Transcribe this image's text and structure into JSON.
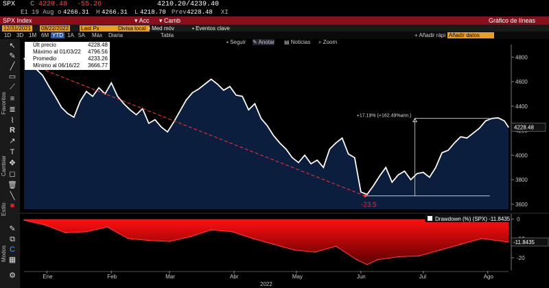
{
  "quote": {
    "ticker": "SPX",
    "code": "C",
    "last": "4228.48",
    "change": "-55.26",
    "range": "4210.20/4239.40",
    "exchange": "E1",
    "date": "19 Aug",
    "open_label": "o",
    "open": "4266.31",
    "high_label": "H",
    "high": "4266.31",
    "low_label": "L",
    "low": "4218.70",
    "prev_label": "Prev",
    "prev": "4228.48",
    "xi": "XI"
  },
  "title_bar": {
    "security": "SPX Index",
    "actions": "Acc",
    "actions2": "Camb",
    "chart_name": "Gráfico de líneas"
  },
  "settings_bar": {
    "start_date": "12/31/2021",
    "end_date": "08/22/2022",
    "price_field": "Last Px",
    "currency": "Divisa local",
    "moving_avg": "Med móv",
    "key_events": "Eventos clave"
  },
  "periods": [
    "1D",
    "3D",
    "1M",
    "6M",
    "YTD",
    "1A",
    "5A",
    "Máx",
    "Diaria"
  ],
  "selected_period": "YTD",
  "table_label": "Tabla",
  "quick_add": "Añadir rápi",
  "quick_add_field": "Añadir datos",
  "chart_toolbar": [
    "Seguir",
    "Anotar",
    "Noticias",
    "Zoom"
  ],
  "left_labels": [
    "Favoritos",
    "Cambiar",
    "Estilo",
    "Modos"
  ],
  "stats": [
    {
      "label": "Últ precio",
      "value": "4228.48"
    },
    {
      "label": "Máximo al 01/03/22",
      "value": "4796.56"
    },
    {
      "label": "Promedio",
      "value": "4233.26"
    },
    {
      "label": "Mínimo al 06/16/22",
      "value": "3666.77"
    }
  ],
  "annotations": {
    "gain": "+17.19% (+162.49%ann.)",
    "drop": "-23.5",
    "last_tag": "4228.48",
    "dd_legend": "Drawdown (%) (SPX) -11.8435",
    "dd_tag": "-11.8435",
    "year": "2022"
  },
  "colors": {
    "accent_red": "#8a0f1c",
    "field_amber": "#e8a020",
    "price_line": "#ffffff",
    "area_fill": "#0b1e3e",
    "drawdown": "#e81818"
  },
  "chart_data": [
    {
      "type": "line",
      "title": "",
      "ylim": [
        3560,
        4880
      ],
      "yticks": [
        3600,
        3800,
        4000,
        4200,
        4400,
        4600,
        4800
      ],
      "x_ticks": [
        "Ene",
        "Feb",
        "Mar",
        "Abr",
        "May",
        "Jun",
        "Jul",
        "Ago"
      ],
      "x_tick_days": [
        11,
        42,
        70,
        101,
        131,
        162,
        192,
        223
      ],
      "series": [
        {
          "days": [
            0,
            3,
            6,
            9,
            12,
            15,
            18,
            21,
            24,
            27,
            30,
            33,
            36,
            39,
            42,
            45,
            48,
            51,
            54,
            57,
            60,
            63,
            66,
            69,
            72,
            75,
            78,
            81,
            84,
            87,
            90,
            93,
            96,
            99,
            102,
            105,
            108,
            111,
            114,
            117,
            120,
            123,
            126,
            129,
            132,
            135,
            138,
            141,
            144,
            147,
            150,
            153,
            156,
            159,
            162,
            165,
            168,
            171,
            174,
            177,
            180,
            183,
            186,
            189,
            192,
            195,
            198,
            201,
            204,
            207,
            210,
            213,
            216,
            219,
            222,
            225,
            228,
            231,
            233
          ],
          "values": [
            4790,
            4740,
            4700,
            4650,
            4560,
            4480,
            4390,
            4340,
            4310,
            4440,
            4520,
            4480,
            4550,
            4500,
            4590,
            4480,
            4420,
            4370,
            4330,
            4380,
            4260,
            4290,
            4230,
            4190,
            4270,
            4360,
            4450,
            4510,
            4540,
            4580,
            4620,
            4580,
            4530,
            4560,
            4490,
            4480,
            4370,
            4420,
            4300,
            4240,
            4160,
            4100,
            4050,
            3980,
            3940,
            4000,
            3930,
            3960,
            3900,
            4050,
            4100,
            4140,
            4010,
            3980,
            3700,
            3680,
            3750,
            3830,
            3900,
            3780,
            3840,
            3870,
            3800,
            3850,
            3860,
            3820,
            3900,
            4020,
            4040,
            4100,
            4150,
            4140,
            4180,
            4220,
            4280,
            4300,
            4305,
            4280,
            4228
          ]
        }
      ]
    },
    {
      "type": "area",
      "title": "",
      "ylim": [
        -25,
        2
      ],
      "yticks": [
        0,
        -10,
        -20
      ],
      "series": [
        {
          "name": "Drawdown (%) (SPX)",
          "days": [
            0,
            10,
            20,
            30,
            40,
            50,
            60,
            70,
            80,
            90,
            100,
            110,
            120,
            130,
            140,
            150,
            160,
            165,
            170,
            180,
            190,
            200,
            210,
            220,
            233
          ],
          "values": [
            -0.5,
            -3,
            -7,
            -6.5,
            -4,
            -10,
            -11,
            -11.5,
            -9,
            -5.5,
            -6.5,
            -10,
            -13,
            -16,
            -17,
            -14,
            -21,
            -23.5,
            -21,
            -19.5,
            -19,
            -16,
            -13,
            -10,
            -11.84
          ]
        }
      ]
    }
  ]
}
